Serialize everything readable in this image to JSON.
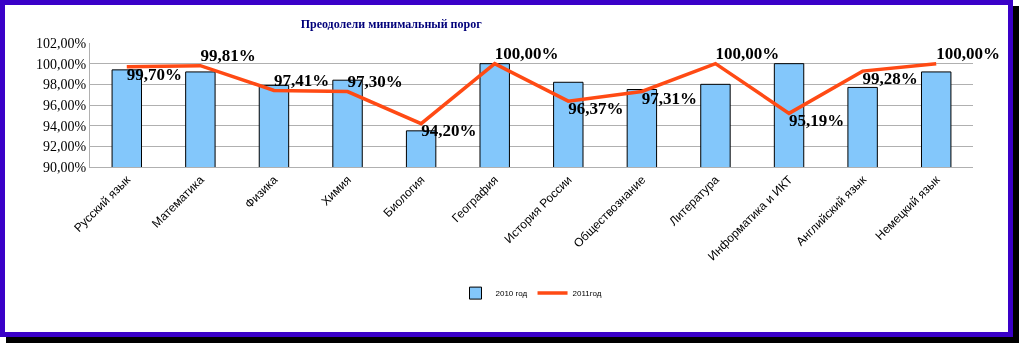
{
  "chart_data": {
    "type": "bar",
    "title": "Преодолели минимальный порог",
    "categories": [
      "Русский язык",
      "Математика",
      "Физика",
      "Химия",
      "Биология",
      "География",
      "История России",
      "Обществознание",
      "Литература",
      "Информатика и ИКТ",
      "Английский язык",
      "Немецкий язык"
    ],
    "series": [
      {
        "name": "2010 год",
        "color": "#83c7fb",
        "values": [
          99.4,
          99.2,
          97.9,
          98.4,
          93.5,
          100,
          98.2,
          97.5,
          98.0,
          100,
          97.7,
          99.2
        ]
      },
      {
        "name": "2011год",
        "type": "line",
        "color": "#ff4a14",
        "values": [
          99.7,
          99.81,
          97.41,
          97.3,
          94.2,
          100,
          96.37,
          97.31,
          100,
          95.19,
          99.28,
          100
        ],
        "value_labels": [
          "99,70%",
          "99,81%",
          "97,41%",
          "97,30%",
          "94,20%",
          "100,00%",
          "96,37%",
          "97,31%",
          "100,00%",
          "95,19%",
          "99,28%",
          "100,00%"
        ]
      }
    ],
    "ylim": [
      90,
      102
    ],
    "yticks": [
      {
        "value": 90,
        "label": "90,00%"
      },
      {
        "value": 92,
        "label": "92,00%"
      },
      {
        "value": 94,
        "label": "94,00%"
      },
      {
        "value": 96,
        "label": "96,00%"
      },
      {
        "value": 98,
        "label": "98,00%"
      },
      {
        "value": 100,
        "label": "100,00%"
      },
      {
        "value": 102,
        "label": "102,00%"
      }
    ],
    "grid": "y",
    "legend": "bottom",
    "marker": "none"
  }
}
